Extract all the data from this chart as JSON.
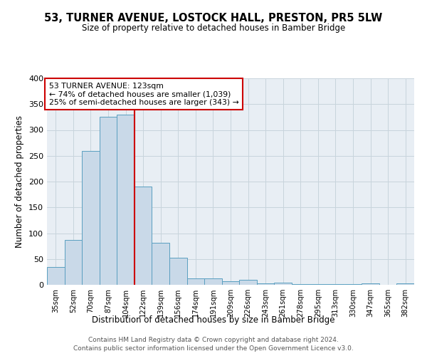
{
  "title": "53, TURNER AVENUE, LOSTOCK HALL, PRESTON, PR5 5LW",
  "subtitle": "Size of property relative to detached houses in Bamber Bridge",
  "xlabel": "Distribution of detached houses by size in Bamber Bridge",
  "ylabel": "Number of detached properties",
  "bar_labels": [
    "35sqm",
    "52sqm",
    "70sqm",
    "87sqm",
    "104sqm",
    "122sqm",
    "139sqm",
    "156sqm",
    "174sqm",
    "191sqm",
    "209sqm",
    "226sqm",
    "243sqm",
    "261sqm",
    "278sqm",
    "295sqm",
    "313sqm",
    "330sqm",
    "347sqm",
    "365sqm",
    "382sqm"
  ],
  "bar_heights": [
    35,
    87,
    260,
    325,
    330,
    190,
    82,
    52,
    12,
    13,
    7,
    9,
    3,
    4,
    2,
    1,
    1,
    2,
    3,
    0,
    3
  ],
  "bar_color": "#c9d9e8",
  "bar_edge_color": "#5a9fc0",
  "vline_bar_index": 5,
  "vline_color": "#cc0000",
  "annotation_title": "53 TURNER AVENUE: 123sqm",
  "annotation_line1": "← 74% of detached houses are smaller (1,039)",
  "annotation_line2": "25% of semi-detached houses are larger (343) →",
  "annotation_box_color": "#cc0000",
  "ylim": [
    0,
    400
  ],
  "yticks": [
    0,
    50,
    100,
    150,
    200,
    250,
    300,
    350,
    400
  ],
  "footnote1": "Contains HM Land Registry data © Crown copyright and database right 2024.",
  "footnote2": "Contains public sector information licensed under the Open Government Licence v3.0.",
  "background_color": "#ffffff",
  "axes_bg_color": "#e8eef4",
  "grid_color": "#c8d4dc"
}
